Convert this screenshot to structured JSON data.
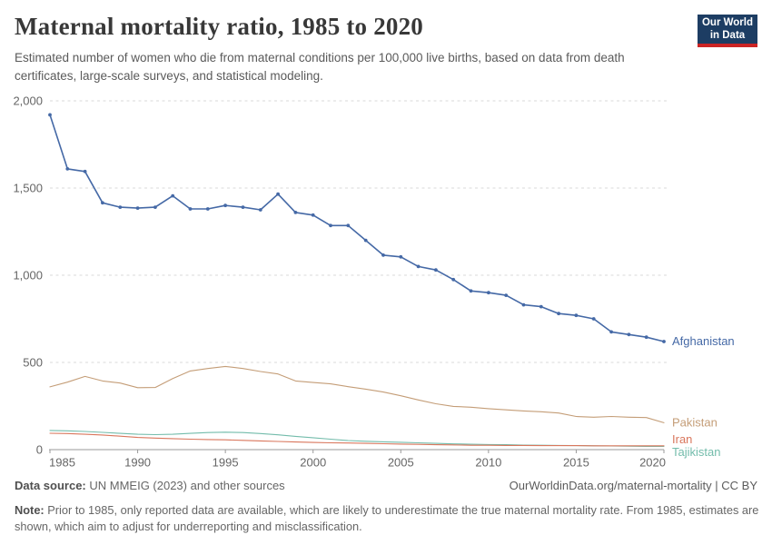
{
  "header": {
    "title": "Maternal mortality ratio, 1985 to 2020",
    "subtitle": "Estimated number of women who die from maternal conditions per 100,000 live births, based on data from death certificates, large-scale surveys, and statistical modeling.",
    "logo": {
      "line1": "Our World",
      "line2": "in Data",
      "bg_color": "#1d3d63",
      "stripe_color": "#cb2424"
    }
  },
  "chart_data": {
    "type": "line",
    "title": "Maternal mortality ratio, 1985 to 2020",
    "xlabel": "",
    "ylabel": "",
    "xlim": [
      1985,
      2020
    ],
    "ylim": [
      0,
      2000
    ],
    "grid": "horizontal-dashed",
    "legend_position": "end-of-line-labels",
    "xticks": [
      1985,
      1990,
      1995,
      2000,
      2005,
      2010,
      2015,
      2020
    ],
    "yticks": [
      0,
      500,
      1000,
      1500,
      2000
    ],
    "ytick_labels": [
      "0",
      "500",
      "1,000",
      "1,500",
      "2,000"
    ],
    "x": [
      1985,
      1986,
      1987,
      1988,
      1989,
      1990,
      1991,
      1992,
      1993,
      1994,
      1995,
      1996,
      1997,
      1998,
      1999,
      2000,
      2001,
      2002,
      2003,
      2004,
      2005,
      2006,
      2007,
      2008,
      2009,
      2010,
      2011,
      2012,
      2013,
      2014,
      2015,
      2016,
      2017,
      2018,
      2019,
      2020
    ],
    "series": [
      {
        "name": "Afghanistan",
        "color": "#4569a6",
        "markers": true,
        "values": [
          1920,
          1610,
          1595,
          1415,
          1390,
          1385,
          1390,
          1455,
          1380,
          1380,
          1400,
          1390,
          1375,
          1465,
          1360,
          1345,
          1285,
          1285,
          1200,
          1115,
          1105,
          1050,
          1030,
          975,
          910,
          900,
          885,
          830,
          820,
          780,
          770,
          750,
          675,
          660,
          645,
          620
        ]
      },
      {
        "name": "Pakistan",
        "color": "#c49d77",
        "markers": false,
        "values": [
          360,
          387,
          420,
          394,
          382,
          355,
          356,
          408,
          451,
          465,
          477,
          465,
          448,
          434,
          394,
          385,
          377,
          361,
          347,
          330,
          309,
          285,
          263,
          248,
          243,
          235,
          228,
          222,
          217,
          210,
          190,
          186,
          190,
          186,
          184,
          154
        ]
      },
      {
        "name": "Iran",
        "color": "#d9765c",
        "markers": false,
        "values": [
          94,
          92,
          88,
          84,
          77,
          70,
          66,
          63,
          60,
          58,
          56,
          53,
          50,
          47,
          44,
          41,
          39,
          38,
          36,
          34,
          32,
          30,
          28,
          27,
          25,
          25,
          24,
          24,
          23,
          23,
          23,
          22,
          22,
          22,
          22,
          22
        ]
      },
      {
        "name": "Tajikistan",
        "color": "#73bcab",
        "markers": false,
        "values": [
          110,
          108,
          104,
          99,
          93,
          88,
          86,
          88,
          93,
          98,
          100,
          98,
          92,
          85,
          76,
          68,
          60,
          52,
          48,
          45,
          42,
          39,
          36,
          33,
          31,
          29,
          28,
          26,
          25,
          24,
          23,
          22,
          21,
          20,
          19,
          18
        ]
      }
    ],
    "axis_color": "#999999",
    "gridline_color": "#d9d9d9",
    "tick_label_color": "#666666"
  },
  "footer": {
    "data_source_label": "Data source:",
    "data_source_text": " UN MMEIG (2023) and other sources",
    "url": "OurWorldinData.org/maternal-mortality | CC BY",
    "note_label": "Note:",
    "note_text": " Prior to 1985, only reported data are available, which are likely to underestimate the true maternal mortality rate. From 1985, estimates are shown, which aim to adjust for underreporting and misclassification."
  }
}
